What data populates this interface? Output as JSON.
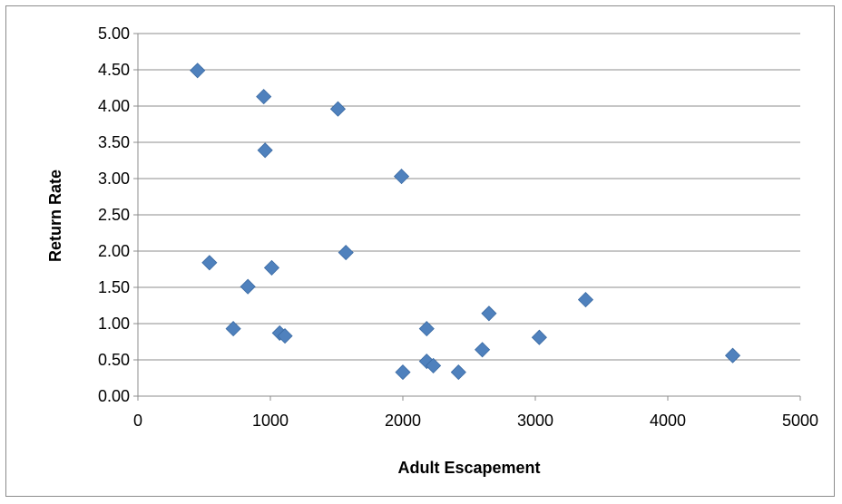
{
  "chart_data": {
    "type": "scatter",
    "xlabel": "Adult Escapement",
    "ylabel": "Return Rate",
    "xlim": [
      0,
      5000
    ],
    "ylim": [
      0,
      5
    ],
    "x_ticks": [
      "0",
      "1000",
      "2000",
      "3000",
      "4000",
      "5000"
    ],
    "y_ticks": [
      "0.00",
      "0.50",
      "1.00",
      "1.50",
      "2.00",
      "2.50",
      "3.00",
      "3.50",
      "4.00",
      "4.50",
      "5.00"
    ],
    "grid": "horizontal",
    "marker": "diamond",
    "marker_color": "#4F81BD",
    "points": [
      {
        "x": 450,
        "y": 4.49
      },
      {
        "x": 950,
        "y": 4.13
      },
      {
        "x": 1510,
        "y": 3.96
      },
      {
        "x": 960,
        "y": 3.39
      },
      {
        "x": 1990,
        "y": 3.03
      },
      {
        "x": 540,
        "y": 1.84
      },
      {
        "x": 1010,
        "y": 1.77
      },
      {
        "x": 1570,
        "y": 1.98
      },
      {
        "x": 830,
        "y": 1.51
      },
      {
        "x": 720,
        "y": 0.93
      },
      {
        "x": 1070,
        "y": 0.87
      },
      {
        "x": 1110,
        "y": 0.83
      },
      {
        "x": 2000,
        "y": 0.33
      },
      {
        "x": 2180,
        "y": 0.93
      },
      {
        "x": 2180,
        "y": 0.48
      },
      {
        "x": 2230,
        "y": 0.42
      },
      {
        "x": 2420,
        "y": 0.33
      },
      {
        "x": 2600,
        "y": 0.64
      },
      {
        "x": 2650,
        "y": 1.14
      },
      {
        "x": 3030,
        "y": 0.81
      },
      {
        "x": 3380,
        "y": 1.33
      },
      {
        "x": 4490,
        "y": 0.56
      }
    ]
  }
}
